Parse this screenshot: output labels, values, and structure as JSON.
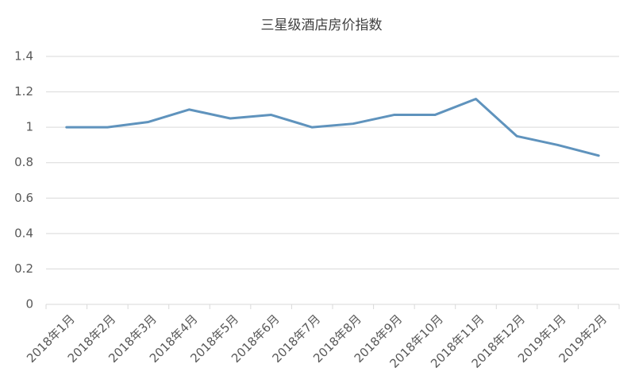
{
  "chart_data": {
    "type": "line",
    "title": "三星级酒店房价指数",
    "categories": [
      "2018年1月",
      "2018年2月",
      "2018年3月",
      "2018年4月",
      "2018年5月",
      "2018年6月",
      "2018年7月",
      "2018年8月",
      "2018年9月",
      "2018年10月",
      "2018年11月",
      "2018年12月",
      "2019年1月",
      "2019年2月"
    ],
    "values": [
      1.0,
      1.0,
      1.03,
      1.1,
      1.05,
      1.07,
      1.0,
      1.02,
      1.07,
      1.07,
      1.16,
      0.95,
      0.9,
      0.84
    ],
    "color": "#5f93bd",
    "ylim": [
      0,
      1.4
    ],
    "yticks": [
      0,
      0.2,
      0.4,
      0.6,
      0.8,
      1,
      1.2,
      1.4
    ],
    "grid": true
  }
}
